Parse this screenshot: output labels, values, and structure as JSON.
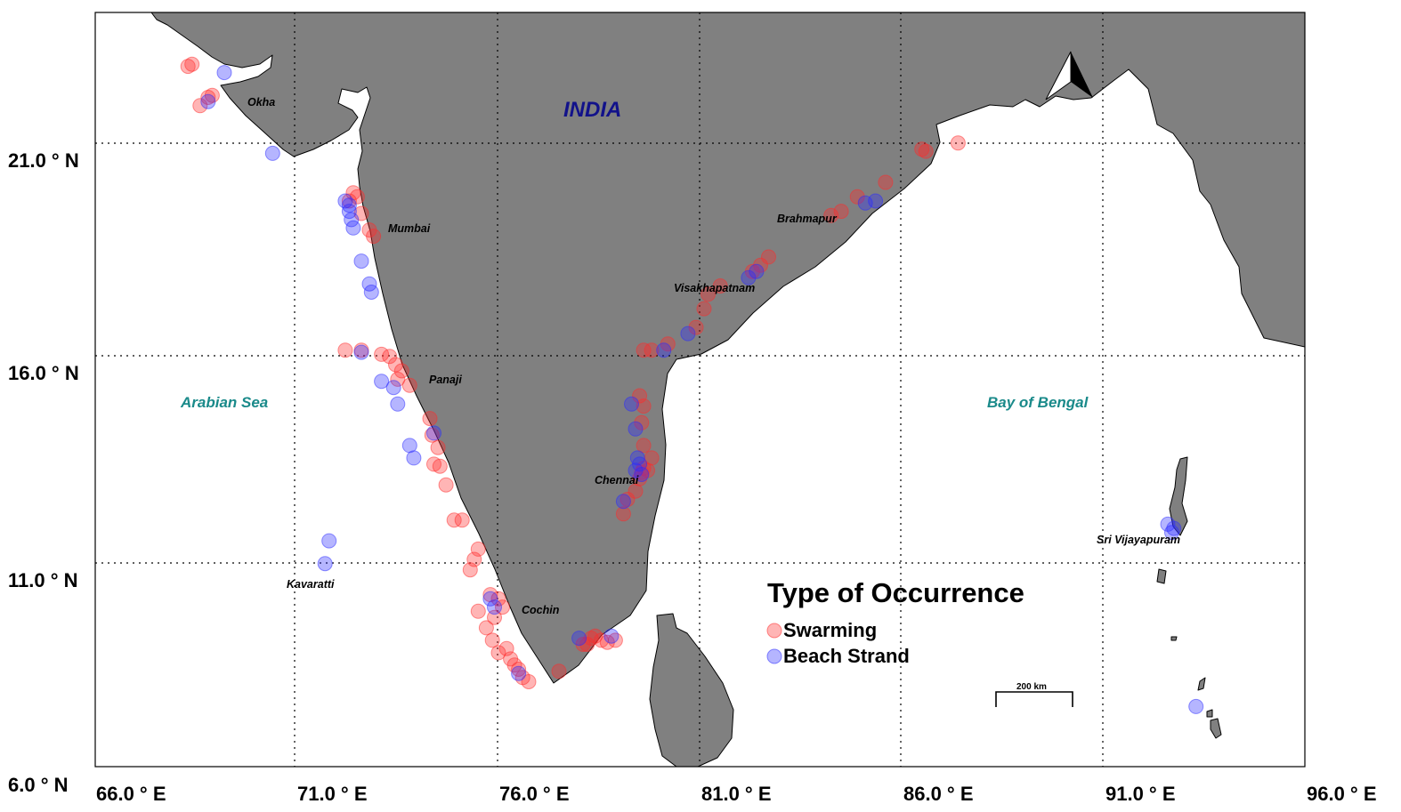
{
  "map": {
    "country_label": "INDIA",
    "seas": {
      "west": "Arabian Sea",
      "east": "Bay of Bengal"
    },
    "places": {
      "okha": "Okha",
      "mumbai": "Mumbai",
      "panaji": "Panaji",
      "kavaratti": "Kavaratti",
      "cochin": "Cochin",
      "chennai": "Chennai",
      "visakhapatnam": "Visakhapatnam",
      "brahmapur": "Brahmapur",
      "sri_vijayapuram": "Sri Vijayapuram"
    },
    "lon_ticks": [
      "66.0 ° E",
      "71.0 ° E",
      "76.0 ° E",
      "81.0 ° E",
      "86.0 ° E",
      "91.0 ° E",
      "96.0 ° E"
    ],
    "lat_ticks": [
      "21.0 ° N",
      "16.0 ° N",
      "11.0 ° N",
      "6.0 ° N"
    ],
    "scale_bar": "200 km",
    "colors": {
      "land": "#808080",
      "sea": "#ffffff",
      "swarming": "#ff2a2a",
      "beach_strand": "#2a2aff"
    },
    "icons": [
      "north-arrow-icon"
    ]
  },
  "legend": {
    "title": "Type of Occurrence",
    "items": [
      {
        "label": "Swarming",
        "color": "#ff5a5a"
      },
      {
        "label": "Beach Strand",
        "color": "#5a5aff"
      }
    ]
  },
  "chart_data": {
    "type": "scatter",
    "xlim": [
      66,
      96
    ],
    "ylim": [
      6,
      24.2
    ],
    "series": [
      {
        "name": "Swarming",
        "points": [
          [
            68.4,
            22.95
          ],
          [
            68.3,
            22.9
          ],
          [
            68.8,
            22.15
          ],
          [
            68.9,
            22.2
          ],
          [
            68.6,
            21.95
          ],
          [
            72.4,
            19.85
          ],
          [
            72.3,
            19.65
          ],
          [
            72.5,
            19.75
          ],
          [
            72.6,
            19.35
          ],
          [
            72.8,
            18.95
          ],
          [
            72.9,
            18.8
          ],
          [
            72.2,
            16.05
          ],
          [
            72.6,
            16.05
          ],
          [
            73.1,
            15.95
          ],
          [
            73.3,
            15.9
          ],
          [
            73.45,
            15.7
          ],
          [
            73.6,
            15.55
          ],
          [
            73.5,
            15.35
          ],
          [
            73.8,
            15.2
          ],
          [
            74.3,
            14.4
          ],
          [
            74.35,
            14.0
          ],
          [
            74.5,
            13.7
          ],
          [
            74.4,
            13.3
          ],
          [
            74.7,
            12.8
          ],
          [
            74.55,
            13.25
          ],
          [
            74.9,
            11.95
          ],
          [
            75.1,
            11.95
          ],
          [
            75.4,
            11.0
          ],
          [
            75.5,
            11.25
          ],
          [
            75.3,
            10.75
          ],
          [
            75.8,
            10.15
          ],
          [
            75.5,
            9.75
          ],
          [
            76.0,
            10.05
          ],
          [
            76.1,
            9.85
          ],
          [
            75.9,
            9.6
          ],
          [
            75.7,
            9.35
          ],
          [
            75.85,
            9.05
          ],
          [
            76.2,
            8.85
          ],
          [
            76.0,
            8.75
          ],
          [
            76.3,
            8.6
          ],
          [
            76.4,
            8.45
          ],
          [
            76.5,
            8.35
          ],
          [
            76.6,
            8.15
          ],
          [
            76.75,
            8.05
          ],
          [
            77.5,
            8.3
          ],
          [
            78.1,
            8.95
          ],
          [
            78.3,
            9.1
          ],
          [
            78.4,
            9.15
          ],
          [
            78.55,
            9.05
          ],
          [
            78.7,
            9.0
          ],
          [
            78.9,
            9.05
          ],
          [
            78.2,
            8.95
          ],
          [
            79.1,
            12.1
          ],
          [
            79.2,
            12.45
          ],
          [
            79.4,
            12.65
          ],
          [
            79.5,
            12.95
          ],
          [
            79.55,
            13.1
          ],
          [
            79.6,
            13.2
          ],
          [
            79.7,
            13.15
          ],
          [
            79.8,
            13.45
          ],
          [
            79.6,
            13.75
          ],
          [
            79.55,
            14.3
          ],
          [
            79.6,
            14.7
          ],
          [
            79.5,
            14.95
          ],
          [
            79.6,
            16.05
          ],
          [
            79.8,
            16.05
          ],
          [
            80.2,
            16.2
          ],
          [
            80.9,
            16.6
          ],
          [
            81.1,
            17.05
          ],
          [
            81.2,
            17.4
          ],
          [
            81.5,
            17.6
          ],
          [
            82.3,
            17.95
          ],
          [
            82.5,
            18.1
          ],
          [
            82.7,
            18.3
          ],
          [
            84.25,
            19.3
          ],
          [
            84.5,
            19.4
          ],
          [
            84.9,
            19.75
          ],
          [
            85.6,
            20.1
          ],
          [
            86.6,
            20.85
          ],
          [
            87.4,
            21.05
          ],
          [
            86.5,
            20.9
          ]
        ]
      },
      {
        "name": "Beach Strand",
        "points": [
          [
            69.2,
            22.75
          ],
          [
            68.8,
            22.05
          ],
          [
            70.4,
            20.8
          ],
          [
            72.2,
            19.65
          ],
          [
            72.3,
            19.55
          ],
          [
            72.3,
            19.4
          ],
          [
            72.35,
            19.2
          ],
          [
            72.4,
            19.0
          ],
          [
            72.6,
            18.2
          ],
          [
            72.8,
            17.65
          ],
          [
            72.85,
            17.45
          ],
          [
            72.6,
            16.0
          ],
          [
            73.1,
            15.3
          ],
          [
            73.4,
            15.15
          ],
          [
            73.5,
            14.75
          ],
          [
            73.8,
            13.75
          ],
          [
            73.9,
            13.45
          ],
          [
            74.4,
            14.05
          ],
          [
            71.8,
            11.45
          ],
          [
            71.7,
            10.9
          ],
          [
            75.8,
            10.05
          ],
          [
            75.9,
            9.85
          ],
          [
            76.5,
            8.25
          ],
          [
            78.0,
            9.1
          ],
          [
            78.8,
            9.15
          ],
          [
            79.1,
            12.4
          ],
          [
            79.3,
            14.75
          ],
          [
            79.4,
            14.15
          ],
          [
            79.45,
            13.45
          ],
          [
            79.5,
            13.3
          ],
          [
            79.4,
            13.15
          ],
          [
            79.55,
            13.05
          ],
          [
            80.1,
            16.05
          ],
          [
            80.7,
            16.45
          ],
          [
            82.2,
            17.8
          ],
          [
            82.4,
            17.95
          ],
          [
            85.1,
            19.6
          ],
          [
            85.35,
            19.65
          ],
          [
            92.6,
            11.85
          ],
          [
            92.75,
            11.75
          ],
          [
            92.7,
            11.65
          ],
          [
            93.3,
            7.45
          ]
        ]
      }
    ]
  }
}
